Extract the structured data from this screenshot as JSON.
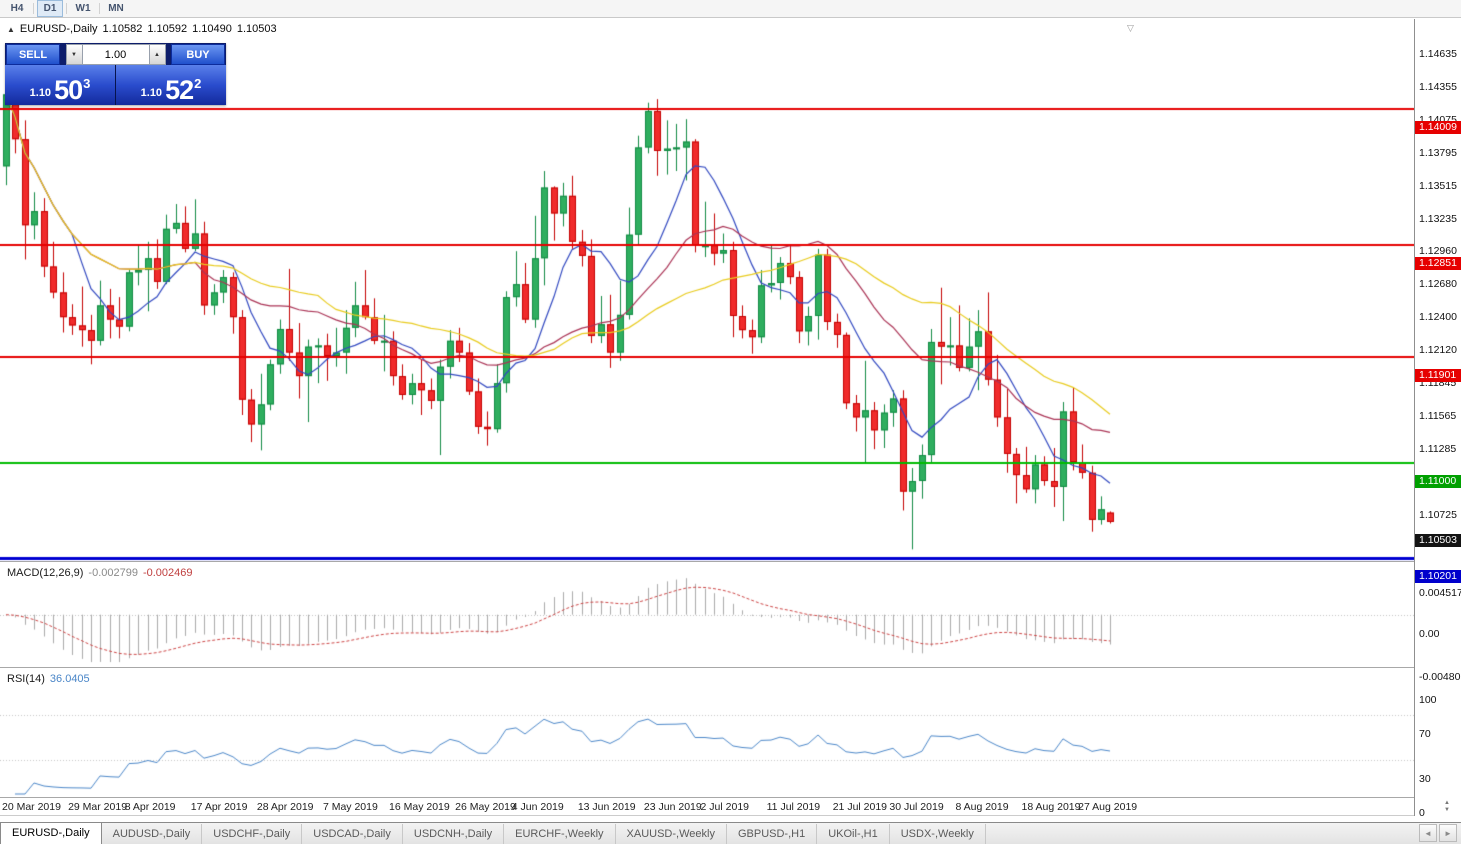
{
  "toolbar": {
    "timeframes": [
      "H4",
      "D1",
      "W1",
      "MN"
    ],
    "active_timeframe": "D1"
  },
  "info_line": {
    "symbol": "EURUSD-,Daily",
    "open": "1.10582",
    "high": "1.10592",
    "low": "1.10490",
    "close": "1.10503"
  },
  "trade_panel": {
    "sell_label": "SELL",
    "buy_label": "BUY",
    "volume": "1.00",
    "sell_price": {
      "small": "1.10",
      "big": "50",
      "sup": "3"
    },
    "buy_price": {
      "small": "1.10",
      "big": "52",
      "sup": "2"
    }
  },
  "icons": {
    "panel_toggle": "▲",
    "spinner_up": "▲",
    "spinner_down": "▼",
    "shift_marker": "▽",
    "tab_scroll_left": "◄",
    "tab_scroll_right": "►",
    "axis_scroll_up": "▲",
    "axis_scroll_down": "▼"
  },
  "price_axis": {
    "ticks": [
      "1.14635",
      "1.14355",
      "1.14075",
      "1.13795",
      "1.13515",
      "1.13235",
      "1.12960",
      "1.12680",
      "1.12400",
      "1.12120",
      "1.11845",
      "1.11565",
      "1.11285",
      "1.10725"
    ],
    "badges": [
      {
        "text": "1.14009",
        "price": 1.14009,
        "bg": "#e60000"
      },
      {
        "text": "1.12851",
        "price": 1.12851,
        "bg": "#e60000"
      },
      {
        "text": "1.11901",
        "price": 1.11901,
        "bg": "#e60000"
      },
      {
        "text": "1.11000",
        "price": 1.11,
        "bg": "#00a000"
      },
      {
        "text": "1.10503",
        "price": 1.10503,
        "bg": "#141414"
      },
      {
        "text": "1.10201",
        "price": 1.10201,
        "bg": "#0000cc"
      }
    ]
  },
  "chart_data": {
    "type": "candlestick",
    "title": "EURUSD-,Daily",
    "symbol": "EURUSD-",
    "timeframe": "Daily",
    "style": {
      "up_fill": "#2fae5f",
      "up_border": "#118a43",
      "down_fill": "#f02b2b",
      "down_border": "#c40000"
    },
    "hlines": [
      {
        "price": 1.14009,
        "color": "#e60000",
        "width": 2
      },
      {
        "price": 1.12851,
        "color": "#e60000",
        "width": 2
      },
      {
        "price": 1.11901,
        "color": "#e60000",
        "width": 2
      },
      {
        "price": 1.11,
        "color": "#00bb00",
        "width": 2
      },
      {
        "price": 1.10201,
        "color": "#0000d2",
        "width": 3
      }
    ],
    "moving_averages": [
      {
        "period": 8,
        "color": "#3148c0"
      },
      {
        "period": 21,
        "color": "#aa3355"
      },
      {
        "period": 34,
        "color": "#e8cb1e"
      }
    ],
    "date_ticks": [
      {
        "index": 0,
        "label": "20 Mar 2019"
      },
      {
        "index": 7,
        "label": "29 Mar 2019"
      },
      {
        "index": 13,
        "label": "8 Apr 2019"
      },
      {
        "index": 20,
        "label": "17 Apr 2019"
      },
      {
        "index": 27,
        "label": "28 Apr 2019"
      },
      {
        "index": 34,
        "label": "7 May 2019"
      },
      {
        "index": 41,
        "label": "16 May 2019"
      },
      {
        "index": 48,
        "label": "26 May 2019"
      },
      {
        "index": 54,
        "label": "4 Jun 2019"
      },
      {
        "index": 61,
        "label": "13 Jun 2019"
      },
      {
        "index": 68,
        "label": "23 Jun 2019"
      },
      {
        "index": 74,
        "label": "2 Jul 2019"
      },
      {
        "index": 81,
        "label": "11 Jul 2019"
      },
      {
        "index": 88,
        "label": "21 Jul 2019"
      },
      {
        "index": 94,
        "label": "30 Jul 2019"
      },
      {
        "index": 101,
        "label": "8 Aug 2019"
      },
      {
        "index": 108,
        "label": "18 Aug 2019"
      },
      {
        "index": 114,
        "label": "27 Aug 2019"
      }
    ],
    "candles": [
      [
        1.1352,
        1.1448,
        1.1336,
        1.1413
      ],
      [
        1.1413,
        1.1438,
        1.1363,
        1.1375
      ],
      [
        1.1375,
        1.1391,
        1.1273,
        1.1302
      ],
      [
        1.1302,
        1.133,
        1.129,
        1.1314
      ],
      [
        1.1314,
        1.1325,
        1.1258,
        1.1267
      ],
      [
        1.1267,
        1.1288,
        1.124,
        1.1245
      ],
      [
        1.1245,
        1.1262,
        1.1211,
        1.1224
      ],
      [
        1.1224,
        1.1235,
        1.1209,
        1.1217
      ],
      [
        1.1217,
        1.125,
        1.1199,
        1.1213
      ],
      [
        1.1213,
        1.1226,
        1.1184,
        1.1204
      ],
      [
        1.1204,
        1.1255,
        1.12,
        1.1234
      ],
      [
        1.1234,
        1.1248,
        1.1206,
        1.1222
      ],
      [
        1.1222,
        1.1241,
        1.1206,
        1.1216
      ],
      [
        1.1216,
        1.1264,
        1.1212,
        1.1262
      ],
      [
        1.1262,
        1.1285,
        1.1251,
        1.1264
      ],
      [
        1.1264,
        1.1288,
        1.1229,
        1.1274
      ],
      [
        1.1274,
        1.129,
        1.1248,
        1.1254
      ],
      [
        1.1254,
        1.1311,
        1.1252,
        1.1299
      ],
      [
        1.1299,
        1.132,
        1.1295,
        1.1304
      ],
      [
        1.1304,
        1.1318,
        1.1279,
        1.1282
      ],
      [
        1.1282,
        1.1324,
        1.128,
        1.1295
      ],
      [
        1.1295,
        1.1305,
        1.1226,
        1.1234
      ],
      [
        1.1234,
        1.1252,
        1.1226,
        1.1245
      ],
      [
        1.1245,
        1.1264,
        1.1236,
        1.1258
      ],
      [
        1.1258,
        1.1262,
        1.121,
        1.1224
      ],
      [
        1.1224,
        1.123,
        1.1141,
        1.1154
      ],
      [
        1.1154,
        1.1163,
        1.1118,
        1.1133
      ],
      [
        1.1133,
        1.1176,
        1.1111,
        1.115
      ],
      [
        1.115,
        1.1188,
        1.1145,
        1.1184
      ],
      [
        1.1184,
        1.1222,
        1.1176,
        1.1214
      ],
      [
        1.1214,
        1.1265,
        1.1187,
        1.1194
      ],
      [
        1.1194,
        1.1219,
        1.1155,
        1.1174
      ],
      [
        1.1174,
        1.1205,
        1.1135,
        1.1199
      ],
      [
        1.1199,
        1.1206,
        1.1168,
        1.12
      ],
      [
        1.12,
        1.121,
        1.117,
        1.1191
      ],
      [
        1.1191,
        1.1215,
        1.1182,
        1.1194
      ],
      [
        1.1194,
        1.123,
        1.1176,
        1.1215
      ],
      [
        1.1215,
        1.1254,
        1.1207,
        1.1234
      ],
      [
        1.1234,
        1.1264,
        1.1222,
        1.1224
      ],
      [
        1.1224,
        1.124,
        1.1201,
        1.1204
      ],
      [
        1.1204,
        1.1226,
        1.1178,
        1.1204
      ],
      [
        1.1204,
        1.1212,
        1.1166,
        1.1174
      ],
      [
        1.1174,
        1.1184,
        1.1154,
        1.1158
      ],
      [
        1.1158,
        1.1176,
        1.115,
        1.1168
      ],
      [
        1.1168,
        1.1188,
        1.1141,
        1.1162
      ],
      [
        1.1162,
        1.1172,
        1.1146,
        1.1153
      ],
      [
        1.1153,
        1.1188,
        1.1107,
        1.1182
      ],
      [
        1.1182,
        1.1213,
        1.1172,
        1.1204
      ],
      [
        1.1204,
        1.1215,
        1.1186,
        1.1194
      ],
      [
        1.1194,
        1.1202,
        1.1158,
        1.1161
      ],
      [
        1.1161,
        1.1172,
        1.1125,
        1.1131
      ],
      [
        1.1131,
        1.1144,
        1.1115,
        1.1129
      ],
      [
        1.1129,
        1.1184,
        1.1126,
        1.1168
      ],
      [
        1.1168,
        1.1246,
        1.116,
        1.1241
      ],
      [
        1.1241,
        1.128,
        1.1233,
        1.1252
      ],
      [
        1.1252,
        1.127,
        1.1219,
        1.1222
      ],
      [
        1.1222,
        1.131,
        1.1215,
        1.1274
      ],
      [
        1.1274,
        1.1348,
        1.1251,
        1.1334
      ],
      [
        1.1334,
        1.1335,
        1.1289,
        1.1312
      ],
      [
        1.1312,
        1.1338,
        1.1301,
        1.1327
      ],
      [
        1.1327,
        1.1344,
        1.1282,
        1.1288
      ],
      [
        1.1288,
        1.1298,
        1.1267,
        1.1276
      ],
      [
        1.1276,
        1.129,
        1.1202,
        1.1208
      ],
      [
        1.1208,
        1.1242,
        1.1202,
        1.1218
      ],
      [
        1.1218,
        1.1243,
        1.1181,
        1.1194
      ],
      [
        1.1194,
        1.1255,
        1.1187,
        1.1226
      ],
      [
        1.1226,
        1.1317,
        1.1222,
        1.1294
      ],
      [
        1.1294,
        1.1378,
        1.1286,
        1.1368
      ],
      [
        1.1368,
        1.1406,
        1.1363,
        1.1399
      ],
      [
        1.1399,
        1.1409,
        1.1344,
        1.1365
      ],
      [
        1.1365,
        1.1391,
        1.1345,
        1.1367
      ],
      [
        1.1367,
        1.1388,
        1.1348,
        1.1368
      ],
      [
        1.1368,
        1.1392,
        1.134,
        1.1373
      ],
      [
        1.1373,
        1.1375,
        1.1279,
        1.1285
      ],
      [
        1.1285,
        1.1322,
        1.1275,
        1.1285
      ],
      [
        1.1285,
        1.1312,
        1.1268,
        1.1278
      ],
      [
        1.1278,
        1.1295,
        1.127,
        1.1281
      ],
      [
        1.1281,
        1.1288,
        1.1207,
        1.1225
      ],
      [
        1.1225,
        1.1234,
        1.1206,
        1.1213
      ],
      [
        1.1213,
        1.1222,
        1.1193,
        1.1207
      ],
      [
        1.1207,
        1.1264,
        1.1202,
        1.1251
      ],
      [
        1.1251,
        1.1285,
        1.1245,
        1.1253
      ],
      [
        1.1253,
        1.1275,
        1.1239,
        1.127
      ],
      [
        1.127,
        1.1285,
        1.1252,
        1.1258
      ],
      [
        1.1258,
        1.1263,
        1.1202,
        1.1212
      ],
      [
        1.1212,
        1.1233,
        1.12,
        1.1225
      ],
      [
        1.1225,
        1.1282,
        1.1205,
        1.1277
      ],
      [
        1.1277,
        1.1282,
        1.1213,
        1.122
      ],
      [
        1.122,
        1.1227,
        1.1198,
        1.1209
      ],
      [
        1.1209,
        1.1211,
        1.1146,
        1.1151
      ],
      [
        1.1151,
        1.1158,
        1.1127,
        1.1139
      ],
      [
        1.1139,
        1.1187,
        1.1101,
        1.1145
      ],
      [
        1.1145,
        1.1152,
        1.1112,
        1.1128
      ],
      [
        1.1128,
        1.115,
        1.1113,
        1.1143
      ],
      [
        1.1143,
        1.1162,
        1.1131,
        1.1155
      ],
      [
        1.1155,
        1.1162,
        1.106,
        1.1076
      ],
      [
        1.1076,
        1.1096,
        1.1027,
        1.1085
      ],
      [
        1.1085,
        1.1116,
        1.107,
        1.1107
      ],
      [
        1.1107,
        1.1214,
        1.1101,
        1.1203
      ],
      [
        1.1203,
        1.1249,
        1.1167,
        1.1199
      ],
      [
        1.1199,
        1.1224,
        1.1183,
        1.12
      ],
      [
        1.12,
        1.1234,
        1.1178,
        1.1181
      ],
      [
        1.1181,
        1.1223,
        1.1178,
        1.1199
      ],
      [
        1.1199,
        1.123,
        1.1162,
        1.1212
      ],
      [
        1.1212,
        1.1245,
        1.1166,
        1.1171
      ],
      [
        1.1171,
        1.1192,
        1.1131,
        1.1139
      ],
      [
        1.1139,
        1.1163,
        1.1092,
        1.1108
      ],
      [
        1.1108,
        1.1113,
        1.1066,
        1.109
      ],
      [
        1.109,
        1.1114,
        1.1075,
        1.1078
      ],
      [
        1.1078,
        1.1107,
        1.1066,
        1.1099
      ],
      [
        1.1099,
        1.1106,
        1.1081,
        1.1085
      ],
      [
        1.1085,
        1.1113,
        1.1063,
        1.108
      ],
      [
        1.108,
        1.1152,
        1.1051,
        1.1144
      ],
      [
        1.1144,
        1.1164,
        1.1094,
        1.1101
      ],
      [
        1.1101,
        1.1116,
        1.1087,
        1.1092
      ],
      [
        1.1092,
        1.1098,
        1.1042,
        1.1052
      ],
      [
        1.1052,
        1.1072,
        1.1048,
        1.1061
      ],
      [
        1.10582,
        1.10592,
        1.1049,
        1.10503
      ]
    ],
    "macd": {
      "name": "MACD(12,26,9)",
      "value_main": "-0.002799",
      "value_signal": "-0.002469",
      "axis_labels": [
        {
          "text": "0.004517",
          "value": 0.004517
        },
        {
          "text": "0.00",
          "value": 0
        },
        {
          "text": "-0.004806",
          "value": -0.004806
        }
      ],
      "colors": {
        "histogram": "#aaaaaa",
        "signal": "#cc4444",
        "zero_line": "#c0c0c0"
      }
    },
    "rsi": {
      "name": "RSI(14)",
      "value": "36.0405",
      "axis_labels": [
        {
          "text": "100",
          "value": 100
        },
        {
          "text": "70",
          "value": 70
        },
        {
          "text": "30",
          "value": 30
        },
        {
          "text": "0",
          "value": 0
        }
      ],
      "levels": [
        70,
        30
      ],
      "color": "#4a86c8",
      "level_color": "#c4c4c4"
    }
  },
  "tabs": [
    {
      "label": "EURUSD-,Daily",
      "active": true
    },
    {
      "label": "AUDUSD-,Daily",
      "active": false
    },
    {
      "label": "USDCHF-,Daily",
      "active": false
    },
    {
      "label": "USDCAD-,Daily",
      "active": false
    },
    {
      "label": "USDCNH-,Daily",
      "active": false
    },
    {
      "label": "EURCHF-,Weekly",
      "active": false
    },
    {
      "label": "XAUUSD-,Weekly",
      "active": false
    },
    {
      "label": "GBPUSD-,H1",
      "active": false
    },
    {
      "label": "UKOil-,H1",
      "active": false
    },
    {
      "label": "USDX-,Weekly",
      "active": false
    }
  ]
}
